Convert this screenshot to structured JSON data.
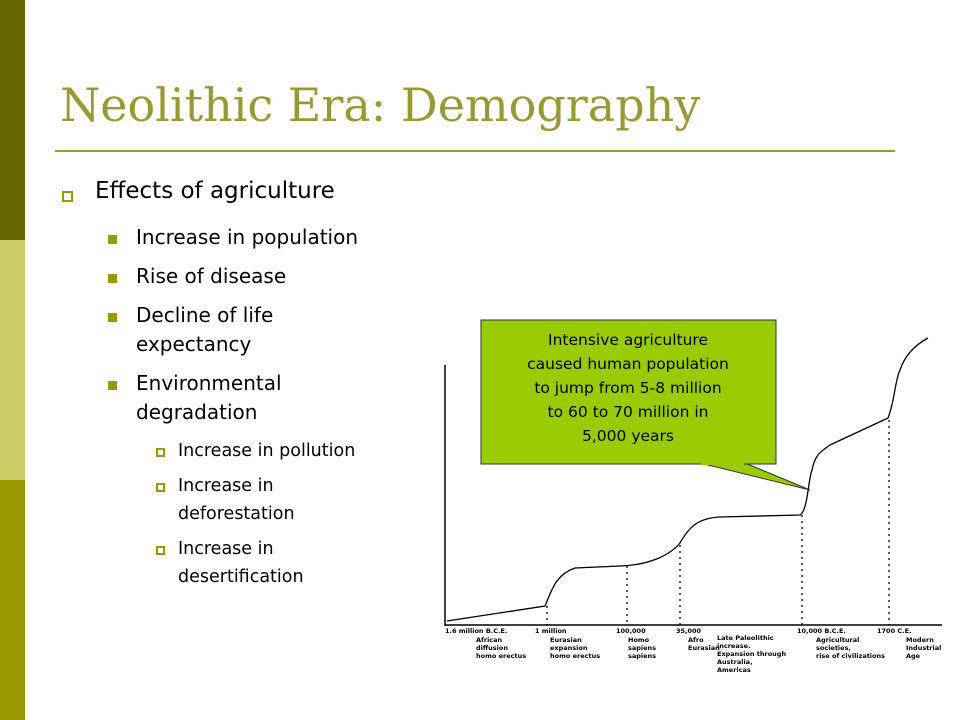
{
  "title": "Neolithic Era: Demography",
  "bullets": [
    {
      "text": "Effects of agriculture",
      "items": [
        {
          "lines": [
            "Increase in population"
          ]
        },
        {
          "lines": [
            "Rise of disease"
          ]
        },
        {
          "lines": [
            "Decline of life",
            "expectancy"
          ]
        },
        {
          "lines": [
            "Environmental",
            "degradation"
          ],
          "items": [
            {
              "lines": [
                "Increase in pollution"
              ]
            },
            {
              "lines": [
                "Increase in",
                "deforestation"
              ]
            },
            {
              "lines": [
                "Increase in",
                "desertification"
              ]
            }
          ]
        }
      ]
    }
  ],
  "callout": {
    "lines": [
      "Intensive agriculture",
      "caused human population",
      "to jump from 5-8 million",
      "to 60 to 70 million in",
      "5,000 years"
    ]
  },
  "timeline": [
    {
      "date": "1.6 million B.C.E.",
      "note": [
        "African",
        "diffusion",
        "homo erectus"
      ]
    },
    {
      "date": "1 million",
      "note": [
        "Eurasian",
        "expansion",
        "homo erectus"
      ]
    },
    {
      "date": "100,000",
      "note": [
        "Homo",
        "sapiens",
        "sapiens"
      ]
    },
    {
      "date": "35,000",
      "note": [
        "Afro",
        "Eurasian"
      ]
    },
    {
      "date": "",
      "note": [
        "Late Paleolithic",
        "increase.",
        "Expansion through",
        "Australia,",
        "Americas"
      ]
    },
    {
      "date": "10,000 B.C.E.",
      "note": [
        "Agricultural",
        "societies,",
        "rise of civilizations"
      ]
    },
    {
      "date": "1700 C.E.",
      "note": [
        "Modern",
        "Industrial",
        "Age"
      ]
    }
  ]
}
